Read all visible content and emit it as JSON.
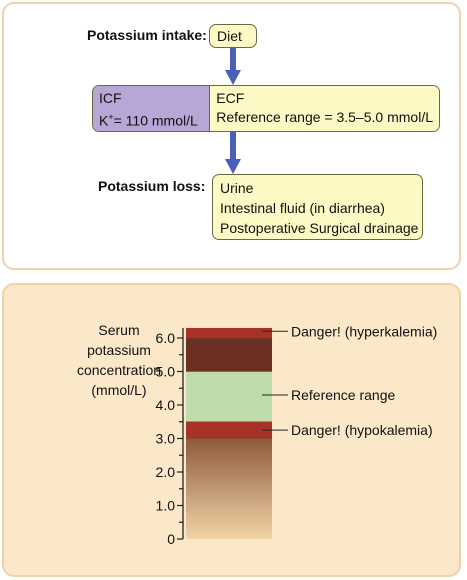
{
  "top": {
    "intake_label": "Potassium intake:",
    "intake_source": "Diet",
    "icf": {
      "title": "ICF",
      "concentration_prefix": "K",
      "concentration_sup": "+",
      "concentration_rest": "= 110 mmol/L"
    },
    "ecf": {
      "title": "ECF",
      "reference": "Reference range = 3.5–5.0 mmol/L"
    },
    "loss_label": "Potassium loss:",
    "loss_routes": [
      "Urine",
      "Intestinal fluid (in diarrhea)",
      "Postoperative Surgical drainage"
    ],
    "arrow_color": "#4a5fb7",
    "icf_color": "#b7a6d6",
    "box_color": "#fdf9c4"
  },
  "chart_data": {
    "type": "bar",
    "ylabel": [
      "Serum",
      "potassium",
      "concentration",
      "(mmol/L)"
    ],
    "ylim": [
      0,
      6.3
    ],
    "yticks": [
      "0",
      "1.0",
      "2.0",
      "3.0",
      "4.0",
      "5.0",
      "6.0"
    ],
    "bands": [
      {
        "name": "hypokalemia-band",
        "from": 3.0,
        "to": 3.5,
        "color": "#a83228"
      },
      {
        "name": "reference-band",
        "from": 3.5,
        "to": 5.0,
        "color": "#bfdcad"
      },
      {
        "name": "upper-band",
        "from": 5.0,
        "to": 6.0,
        "color": "#6b2f24"
      },
      {
        "name": "hyperkalemia-band",
        "from": 6.0,
        "to": 6.3,
        "color": "#a83228"
      }
    ],
    "annotations": [
      {
        "text": "Danger! (hyperkalemia)",
        "value": 6.2
      },
      {
        "text": "Reference range",
        "value": 4.3
      },
      {
        "text": "Danger! (hypokalemia)",
        "value": 3.25
      }
    ]
  }
}
